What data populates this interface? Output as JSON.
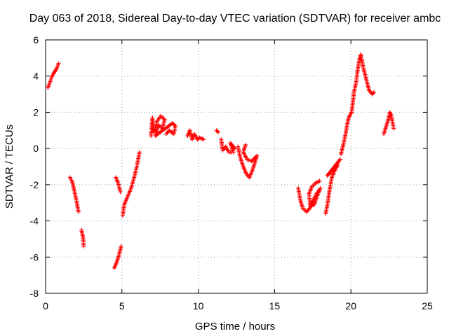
{
  "chart_data": {
    "type": "scatter",
    "title": "Day 063 of 2018, Sidereal Day-to-day VTEC variation (SDTVAR) for receiver ambc",
    "xlabel": "GPS time / hours",
    "ylabel": "SDTVAR / TECUs",
    "xlim": [
      0,
      25
    ],
    "ylim": [
      -8,
      6
    ],
    "xticks": [
      "0",
      "5",
      "10",
      "15",
      "20",
      "25"
    ],
    "yticks": [
      "-8",
      "-6",
      "-4",
      "-2",
      "0",
      "2",
      "4",
      "6"
    ],
    "grid": true,
    "marker": "+",
    "marker_color": "#ff0000",
    "segments": [
      [
        [
          0.15,
          3.35
        ],
        [
          0.3,
          3.7
        ],
        [
          0.45,
          4.05
        ],
        [
          0.6,
          4.25
        ],
        [
          0.75,
          4.45
        ],
        [
          0.85,
          4.7
        ]
      ],
      [
        [
          1.6,
          -1.6
        ],
        [
          1.75,
          -1.85
        ],
        [
          1.9,
          -2.4
        ],
        [
          2.05,
          -3.0
        ],
        [
          2.15,
          -3.5
        ]
      ],
      [
        [
          2.35,
          -4.5
        ],
        [
          2.45,
          -4.9
        ],
        [
          2.5,
          -5.4
        ]
      ],
      [
        [
          4.5,
          -6.6
        ],
        [
          4.65,
          -6.3
        ],
        [
          4.8,
          -5.9
        ],
        [
          4.95,
          -5.4
        ]
      ],
      [
        [
          4.6,
          -1.6
        ],
        [
          4.75,
          -1.9
        ],
        [
          4.9,
          -2.4
        ]
      ],
      [
        [
          5.05,
          -3.7
        ],
        [
          5.15,
          -3.1
        ],
        [
          5.35,
          -2.7
        ],
        [
          5.6,
          -2.2
        ],
        [
          5.8,
          -1.6
        ],
        [
          6.0,
          -0.9
        ],
        [
          6.15,
          -0.2
        ]
      ],
      [
        [
          6.9,
          0.7
        ],
        [
          7.0,
          1.7
        ],
        [
          7.1,
          0.9
        ],
        [
          7.3,
          1.5
        ],
        [
          7.55,
          1.8
        ],
        [
          7.8,
          1.6
        ],
        [
          7.65,
          1.1
        ],
        [
          7.4,
          1.3
        ],
        [
          7.2,
          0.7
        ],
        [
          7.5,
          0.9
        ],
        [
          8.0,
          1.2
        ],
        [
          8.3,
          1.4
        ],
        [
          8.5,
          1.25
        ],
        [
          8.4,
          0.8
        ],
        [
          8.1,
          1.0
        ],
        [
          7.9,
          0.8
        ]
      ],
      [
        [
          9.3,
          0.7
        ],
        [
          9.45,
          1.0
        ],
        [
          9.6,
          0.5
        ],
        [
          9.75,
          0.8
        ],
        [
          9.95,
          0.5
        ],
        [
          10.1,
          0.6
        ],
        [
          10.35,
          0.5
        ]
      ],
      [
        [
          11.2,
          1.0
        ],
        [
          11.3,
          0.9
        ]
      ],
      [
        [
          11.5,
          0.5
        ],
        [
          11.6,
          -0.1
        ],
        [
          11.8,
          0.1
        ],
        [
          12.0,
          -0.2
        ],
        [
          12.3,
          -0.2
        ],
        [
          12.1,
          0.3
        ],
        [
          12.4,
          0.0
        ]
      ],
      [
        [
          12.6,
          0.1
        ],
        [
          12.75,
          -0.5
        ],
        [
          12.95,
          -1.0
        ],
        [
          13.15,
          -1.4
        ],
        [
          13.35,
          -1.6
        ],
        [
          13.55,
          -1.2
        ],
        [
          13.7,
          -0.8
        ],
        [
          13.85,
          -0.4
        ],
        [
          13.5,
          -0.7
        ],
        [
          13.2,
          -0.6
        ],
        [
          12.95,
          -0.2
        ],
        [
          13.1,
          0.2
        ]
      ],
      [
        [
          16.55,
          -2.2
        ],
        [
          16.7,
          -2.9
        ],
        [
          16.85,
          -3.3
        ],
        [
          17.1,
          -3.5
        ],
        [
          17.3,
          -3.3
        ],
        [
          17.5,
          -2.9
        ],
        [
          17.75,
          -2.5
        ],
        [
          18.0,
          -2.2
        ],
        [
          17.8,
          -2.6
        ],
        [
          17.6,
          -3.1
        ],
        [
          17.35,
          -3.2
        ],
        [
          17.25,
          -2.5
        ],
        [
          17.45,
          -2.1
        ],
        [
          17.7,
          -1.9
        ],
        [
          17.95,
          -1.8
        ]
      ],
      [
        [
          18.35,
          -3.6
        ],
        [
          18.5,
          -2.9
        ],
        [
          18.6,
          -2.3
        ],
        [
          18.75,
          -1.6
        ],
        [
          18.95,
          -1.2
        ],
        [
          19.15,
          -0.9
        ],
        [
          18.7,
          -1.3
        ],
        [
          18.45,
          -1.5
        ],
        [
          19.3,
          -0.6
        ]
      ],
      [
        [
          19.35,
          -0.3
        ],
        [
          19.5,
          0.2
        ],
        [
          19.65,
          0.8
        ],
        [
          19.75,
          1.3
        ],
        [
          19.85,
          1.7
        ],
        [
          20.05,
          2.0
        ],
        [
          20.2,
          3.1
        ],
        [
          20.35,
          3.7
        ],
        [
          20.45,
          4.4
        ],
        [
          20.55,
          4.9
        ],
        [
          20.65,
          5.2
        ],
        [
          20.8,
          4.5
        ],
        [
          20.95,
          4.0
        ],
        [
          21.1,
          3.5
        ],
        [
          21.2,
          3.2
        ],
        [
          21.4,
          3.0
        ],
        [
          21.5,
          3.1
        ]
      ],
      [
        [
          22.15,
          0.8
        ],
        [
          22.3,
          1.2
        ],
        [
          22.45,
          1.6
        ],
        [
          22.55,
          2.0
        ],
        [
          22.65,
          1.8
        ],
        [
          22.8,
          1.1
        ]
      ]
    ]
  }
}
